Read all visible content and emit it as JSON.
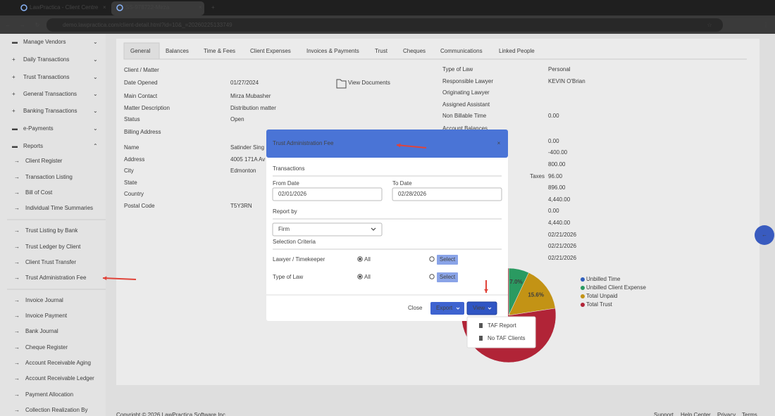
{
  "browser": {
    "tabs": [
      "LawPractica - Client Centre",
      "SS-978722-Mirza"
    ],
    "url": "demo.lawpractica.com/client-detail.html?id=10&_=20260225133749"
  },
  "sidebar": {
    "menu": [
      "Manage Vendors",
      "Daily Transactions",
      "Trust Transactions",
      "General Transactions",
      "Banking Transactions",
      "e-Payments",
      "Reports"
    ],
    "reports": [
      "Client Register",
      "Transaction Listing",
      "Bill of Cost",
      "Individual Time Summaries",
      "Trust Listing by Bank",
      "Trust Ledger by Client",
      "Client Trust Transfer",
      "Trust Administration Fee",
      "Invoice Journal",
      "Invoice Payment",
      "Bank Journal",
      "Cheque Register",
      "Account Receivable Aging",
      "Account Receivable Ledger",
      "Payment Allocation",
      "Collection Realization By"
    ]
  },
  "tabs": [
    "General",
    "Balances",
    "Time & Fees",
    "Client Expenses",
    "Invoices & Payments",
    "Trust",
    "Cheques",
    "Communications",
    "Linked People"
  ],
  "client_matter": {
    "title": "Client / Matter",
    "fields": [
      {
        "label": "Date Opened",
        "value": "01/27/2024"
      },
      {
        "label": "Main Contact",
        "value": "Mirza Mubasher"
      },
      {
        "label": "Matter Description",
        "value": "Distribution matter"
      },
      {
        "label": "Status",
        "value": "Open"
      }
    ]
  },
  "view_documents": "View Documents",
  "billing_address": {
    "title": "Billing Address",
    "fields": [
      {
        "label": "Name",
        "value": "Satinder Sing"
      },
      {
        "label": "Address",
        "value": "4005 171A Av"
      },
      {
        "label": "City",
        "value": "Edmonton"
      },
      {
        "label": "State"
      },
      {
        "label": "Country"
      },
      {
        "label": "Postal Code",
        "value": "T5Y3RN"
      }
    ]
  },
  "matter_info": [
    {
      "label": "Type of Law",
      "value": "Personal"
    },
    {
      "label": "Responsible Lawyer",
      "value": "KEVIN O'Brian"
    },
    {
      "label": "Originating Lawyer"
    },
    {
      "label": "Assigned Assistant"
    },
    {
      "label": "Non Billable Time",
      "value": "0.00"
    }
  ],
  "account_balances": {
    "title": "Account Balances",
    "rows": [
      {
        "value": "0.00"
      },
      {
        "value": "-400.00"
      },
      {
        "value": "800.00"
      },
      {
        "label": "Taxes",
        "value": "96.00"
      },
      {
        "value": "896.00"
      },
      {
        "value": "4,440.00"
      },
      {
        "value": "0.00"
      },
      {
        "value": "4,440.00"
      },
      {
        "value": "02/21/2026"
      },
      {
        "value": "02/21/2026"
      },
      {
        "value": "02/21/2026"
      }
    ]
  },
  "chart_data": {
    "type": "pie",
    "categories": [
      "Unbilled Time",
      "Unbilled Client Expense",
      "Total Unpaid",
      "Total Trust"
    ],
    "values": [
      0,
      7.0,
      15.6,
      77.4
    ],
    "value_labels": [
      null,
      "7.0%",
      "15.6%",
      null
    ],
    "colors": [
      "#3366cc",
      "#2ea86a",
      "#d4a017",
      "#c0283c"
    ]
  },
  "modal": {
    "title": "Trust Administration Fee",
    "transactions": "Transactions",
    "from_label": "From Date",
    "from_value": "02/01/2026",
    "to_label": "To Date",
    "to_value": "02/28/2026",
    "report_by": "Report by",
    "report_value": "Firm",
    "criteria": "Selection Criteria",
    "rows": [
      {
        "label": "Lawyer / Timekeeper",
        "all": "All",
        "select": "Select"
      },
      {
        "label": "Type of Law",
        "all": "All",
        "select": "Select"
      }
    ],
    "close": "Close",
    "export": "Export",
    "view": "View",
    "view_menu": [
      "TAF Report",
      "No TAF Clients"
    ]
  },
  "footer": {
    "copyright": "Copyright © 2026 LawPractica Software Inc.",
    "links": [
      "Support",
      "Help Center",
      "Privacy",
      "Terms"
    ]
  }
}
